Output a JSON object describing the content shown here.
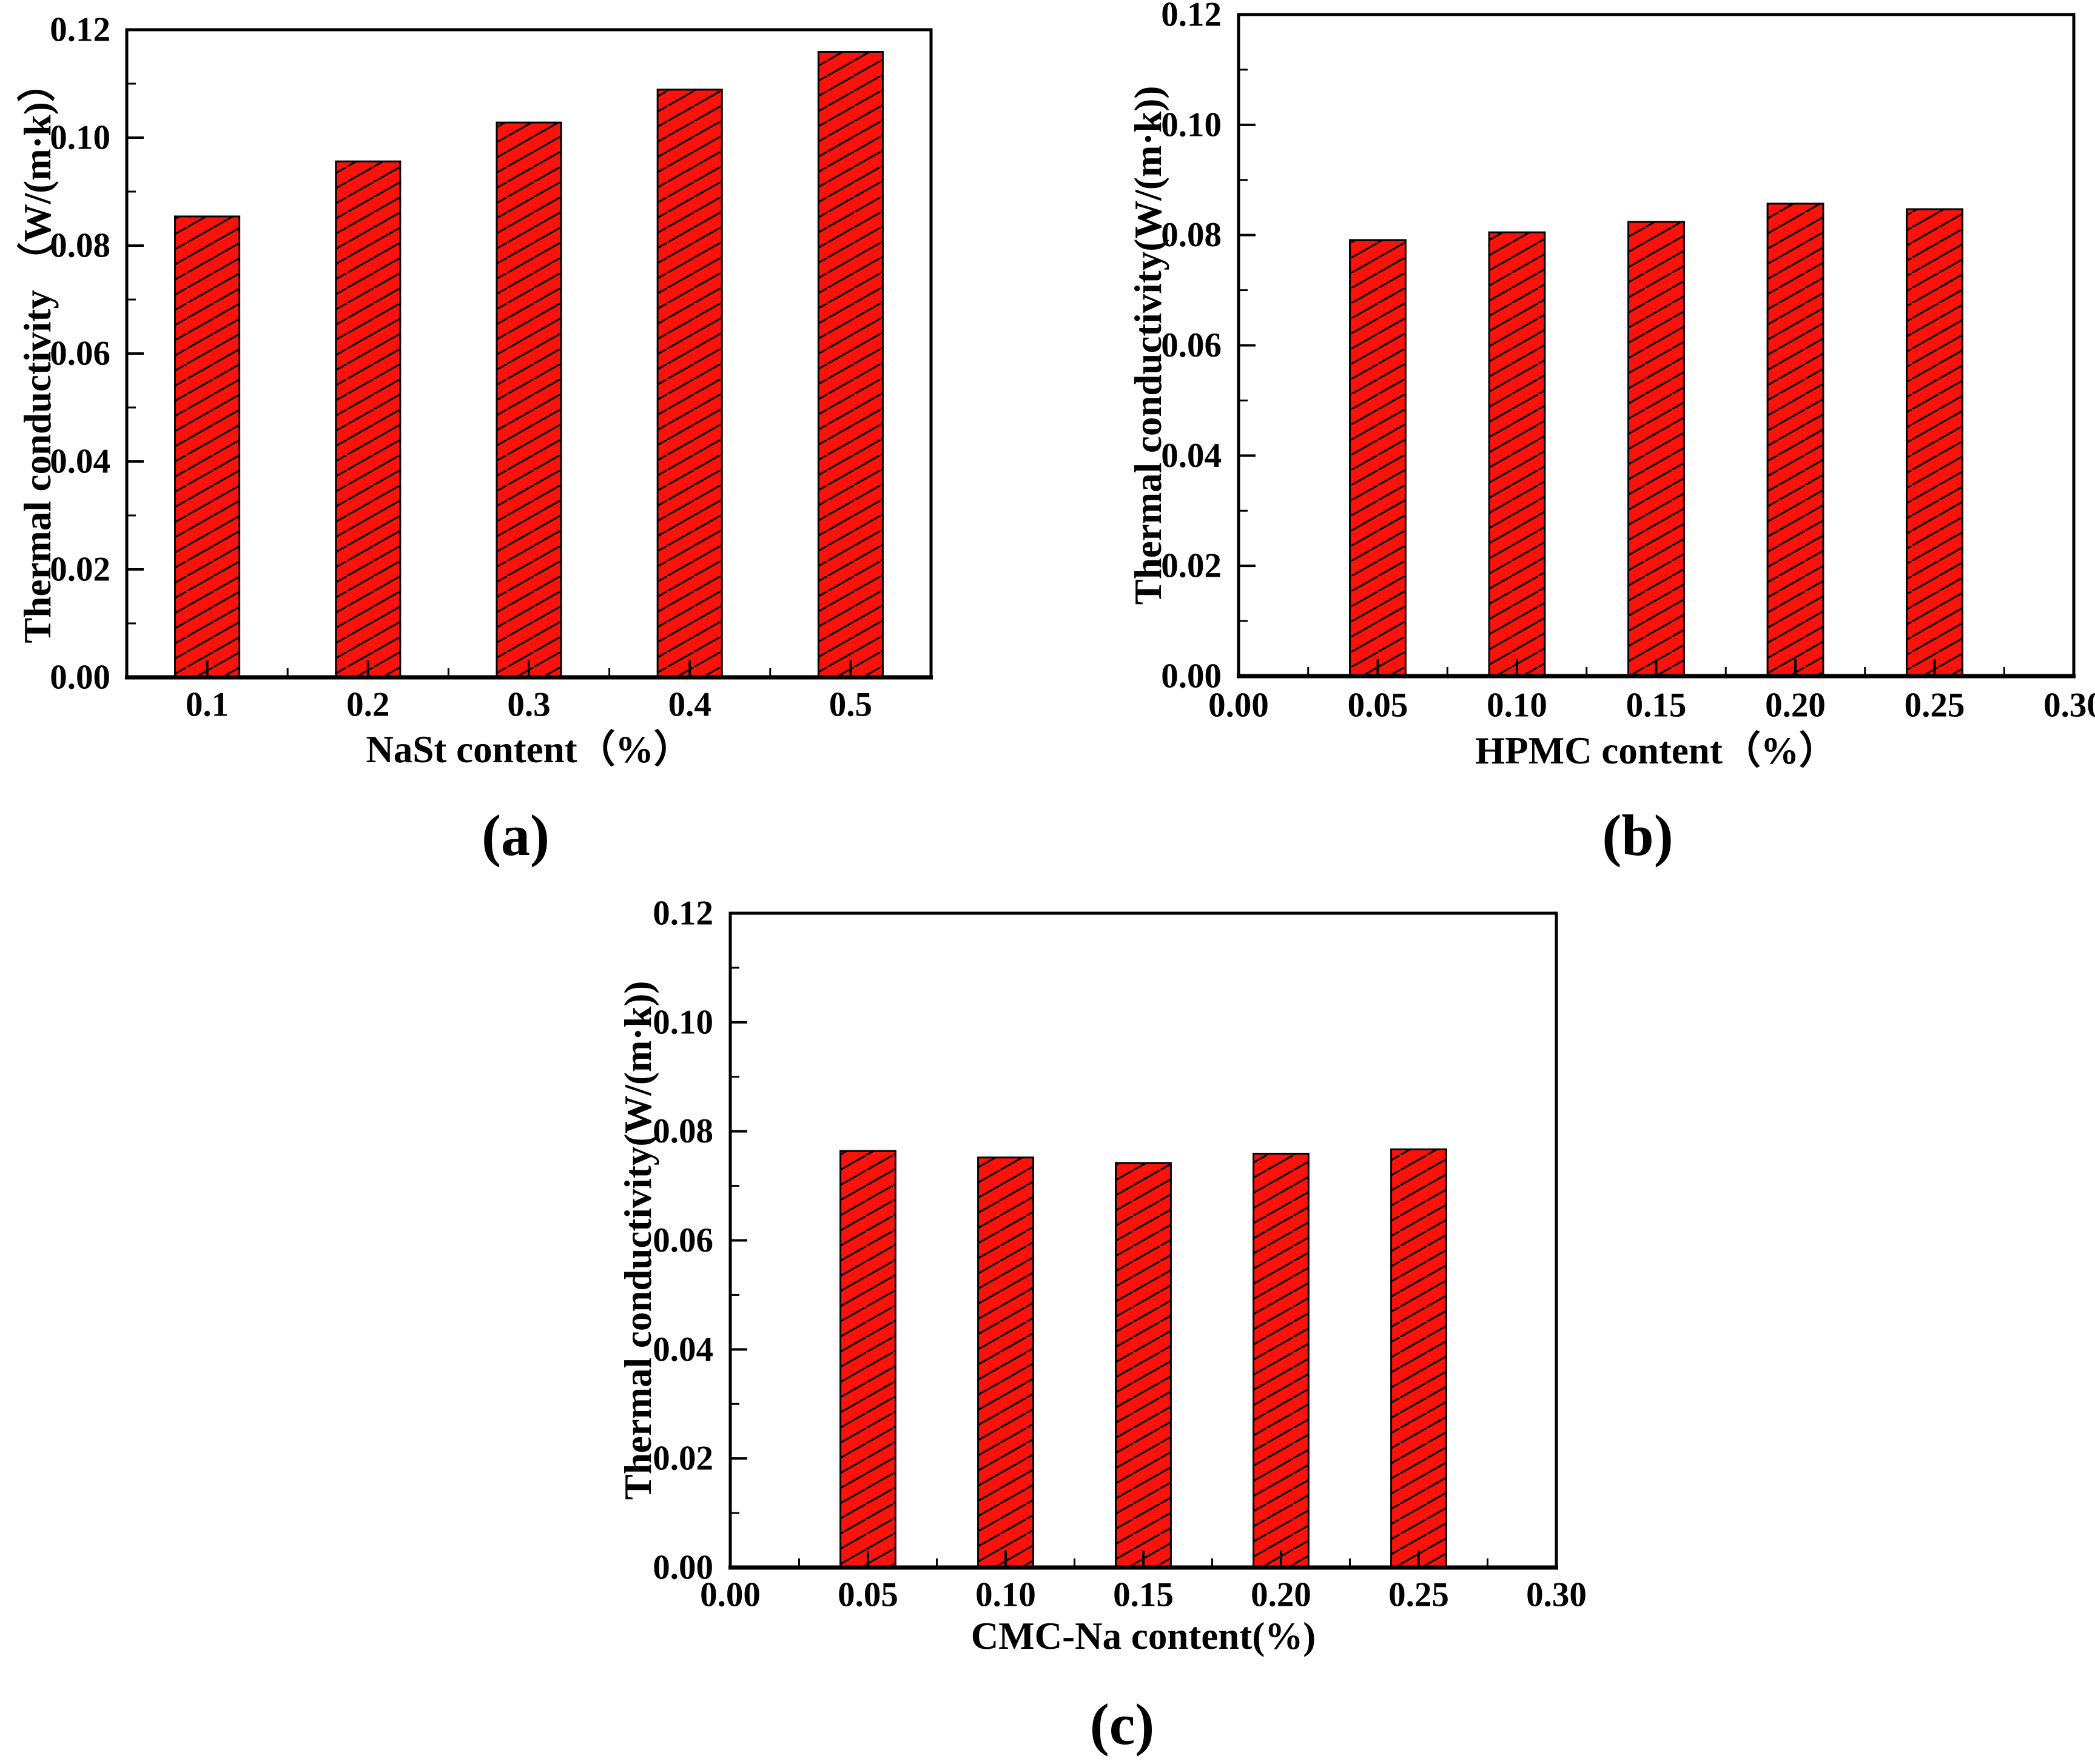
{
  "page": {
    "background": "#ffffff",
    "text_color": "#000000"
  },
  "chart_data": [
    {
      "id": "a",
      "type": "bar",
      "caption": "(a)",
      "title": "",
      "xlabel": "NaSt content（%）",
      "ylabel": "Thermal conductivity （W/(m·k)）",
      "x_mode": "categorical",
      "categories": [
        "0.1",
        "0.2",
        "0.3",
        "0.4",
        "0.5"
      ],
      "values": [
        0.0854,
        0.0956,
        0.1028,
        0.1089,
        0.1159
      ],
      "bar_width_frac": 0.4,
      "ylim": [
        0,
        0.12
      ],
      "yticks": [
        0,
        0.02,
        0.04,
        0.06,
        0.08,
        0.1,
        0.12
      ],
      "ytick_labels": [
        "0.00",
        "0.02",
        "0.04",
        "0.06",
        "0.08",
        "0.10",
        "0.12"
      ],
      "yticks_minor": [
        0.01,
        0.03,
        0.05,
        0.07,
        0.09,
        0.11
      ],
      "bar_color": "#fc120b",
      "bar_edge_color": "#000000",
      "hatch": "forward-diagonal-lines",
      "grid": "off",
      "legend": "none"
    },
    {
      "id": "b",
      "type": "bar",
      "caption": "(b)",
      "title": "",
      "xlabel": "HPMC content（%）",
      "ylabel": "Thermal conductivity(W/(m·k))",
      "x_mode": "numeric",
      "xlim": [
        0,
        0.3
      ],
      "xticks": [
        0,
        0.05,
        0.1,
        0.15,
        0.2,
        0.25,
        0.3
      ],
      "xtick_labels": [
        "0.00",
        "0.05",
        "0.10",
        "0.15",
        "0.20",
        "0.25",
        "0.30"
      ],
      "xticks_minor": [
        0.025,
        0.075,
        0.125,
        0.175,
        0.225,
        0.275
      ],
      "bar_centers": [
        0.05,
        0.1,
        0.15,
        0.2,
        0.25
      ],
      "bar_width": 0.02,
      "values": [
        0.0791,
        0.0805,
        0.0824,
        0.0857,
        0.0847
      ],
      "ylim": [
        0,
        0.12
      ],
      "yticks": [
        0,
        0.02,
        0.04,
        0.06,
        0.08,
        0.1,
        0.12
      ],
      "ytick_labels": [
        "0.00",
        "0.02",
        "0.04",
        "0.06",
        "0.08",
        "0.10",
        "0.12"
      ],
      "yticks_minor": [
        0.01,
        0.03,
        0.05,
        0.07,
        0.09,
        0.11
      ],
      "bar_color": "#fc120b",
      "bar_edge_color": "#000000",
      "hatch": "forward-diagonal-lines",
      "grid": "off",
      "legend": "none"
    },
    {
      "id": "c",
      "type": "bar",
      "caption": "(c)",
      "title": "",
      "xlabel": "CMC-Na content(%)",
      "ylabel": "Thermal conductivity(W/(m·k))",
      "x_mode": "numeric",
      "xlim": [
        0,
        0.3
      ],
      "xticks": [
        0,
        0.05,
        0.1,
        0.15,
        0.2,
        0.25,
        0.3
      ],
      "xtick_labels": [
        "0.00",
        "0.05",
        "0.10",
        "0.15",
        "0.20",
        "0.25",
        "0.30"
      ],
      "xticks_minor": [
        0.025,
        0.075,
        0.125,
        0.175,
        0.225,
        0.275
      ],
      "bar_centers": [
        0.05,
        0.1,
        0.15,
        0.2,
        0.25
      ],
      "bar_width": 0.02,
      "values": [
        0.0764,
        0.0752,
        0.0742,
        0.0759,
        0.0767
      ],
      "ylim": [
        0,
        0.12
      ],
      "yticks": [
        0,
        0.02,
        0.04,
        0.06,
        0.08,
        0.1,
        0.12
      ],
      "ytick_labels": [
        "0.00",
        "0.02",
        "0.04",
        "0.06",
        "0.08",
        "0.10",
        "0.12"
      ],
      "yticks_minor": [
        0.01,
        0.03,
        0.05,
        0.07,
        0.09,
        0.11
      ],
      "bar_color": "#fc120b",
      "bar_edge_color": "#000000",
      "hatch": "forward-diagonal-lines",
      "grid": "off",
      "legend": "none"
    }
  ]
}
